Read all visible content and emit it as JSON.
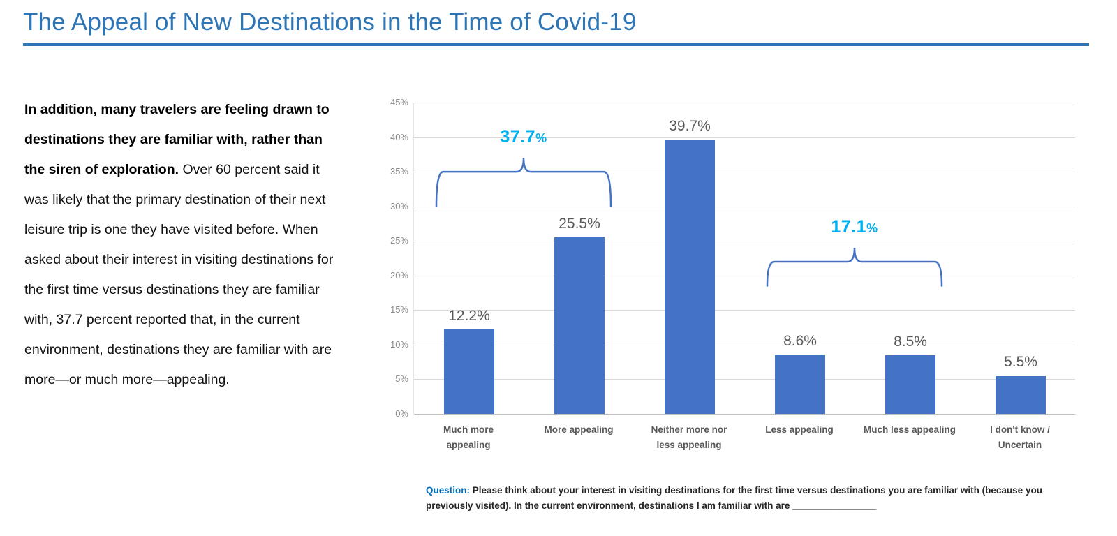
{
  "header": {
    "title": "The Appeal of New Destinations in the Time of Covid-19"
  },
  "commentary": {
    "bold": "In addition, many travelers are feeling drawn to destinations they are familiar with, rather than the siren of exploration.",
    "regular": " Over 60 percent said it was likely that the primary destination of their next leisure trip is one they have visited before. When asked about their interest in visiting destinations for the first time versus destinations they are familiar with, 37.7 percent reported that, in the current environment, destinations they are familiar with are more—or much more—appealing."
  },
  "chart_data": {
    "type": "bar",
    "title": "",
    "xlabel": "",
    "ylabel": "",
    "categories": [
      "Much more appealing",
      "More appealing",
      "Neither more nor less appealing",
      "Less appealing",
      "Much less appealing",
      "I don't know / Uncertain"
    ],
    "category_lines": [
      [
        "Much more",
        "appealing"
      ],
      [
        "More appealing"
      ],
      [
        "Neither more nor",
        "less appealing"
      ],
      [
        "Less appealing"
      ],
      [
        "Much less appealing"
      ],
      [
        "I don't know /",
        "Uncertain"
      ]
    ],
    "values": [
      12.2,
      25.5,
      39.7,
      8.6,
      8.5,
      5.5
    ],
    "value_labels": [
      "12.2%",
      "25.5%",
      "39.7%",
      "8.6%",
      "8.5%",
      "5.5%"
    ],
    "ylim": [
      0,
      45
    ],
    "ytick_step": 5,
    "ytick_labels": [
      "0%",
      "5%",
      "10%",
      "15%",
      "20%",
      "25%",
      "30%",
      "35%",
      "40%",
      "45%"
    ],
    "grid": true,
    "legend": false,
    "annotations": [
      {
        "label": "37.7%",
        "from_index": 0,
        "to_index": 1,
        "top_value": 35,
        "end_value": 30
      },
      {
        "label": "17.1%",
        "from_index": 3,
        "to_index": 4,
        "top_value": 22,
        "end_value": 18.5
      }
    ],
    "colors": {
      "bar": "#4472C4",
      "brace": "#4472C4",
      "annotation": "#00B0F0",
      "grid": "#D9D9D9",
      "axis_text": "#8a8a8a",
      "category_text": "#595959",
      "value_text": "#595959"
    }
  },
  "footer": {
    "question_label": "Question:",
    "question_text": " Please think about your interest in visiting destinations for the first time versus destinations you are familiar with (because you previously visited). In the current environment, destinations  I am familiar with are ________________"
  },
  "theme": {
    "title_color": "#2E75B6",
    "rule_color": "#2E75B6",
    "question_label_color": "#0070C0"
  }
}
